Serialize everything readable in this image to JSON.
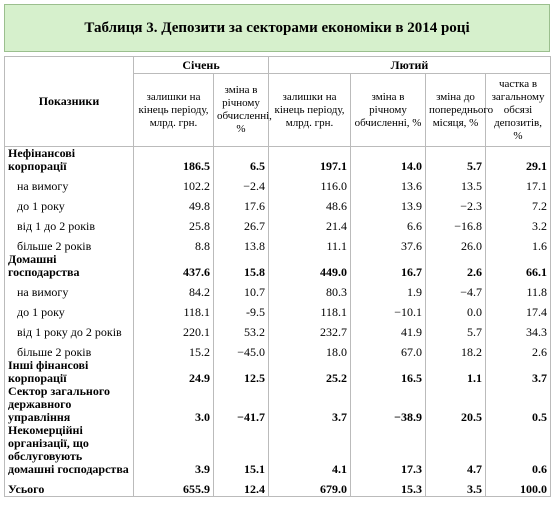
{
  "header": {
    "title": "Таблиця 3. Депозити за секторами економіки в 2014 році"
  },
  "table": {
    "row_header": "Показники",
    "groups": [
      "Січень",
      "Лютий"
    ],
    "columns": [
      "залишки на кінець періоду, млрд. грн.",
      "зміна в річному обчисленні, %",
      "залишки на кінець періоду, млрд. грн.",
      "зміна в річному обчисленні, %",
      "зміна до попереднього місяця, %",
      "частка в загальному обсязі депозитів, %"
    ],
    "rows": [
      {
        "label": "Нефінансові корпорації",
        "level": 0,
        "cells": [
          "186.5",
          "6.5",
          "197.1",
          "14.0",
          "5.7",
          "29.1"
        ]
      },
      {
        "label": "на вимогу",
        "level": 1,
        "cells": [
          "102.2",
          "−2.4",
          "116.0",
          "13.6",
          "13.5",
          "17.1"
        ]
      },
      {
        "label": "до 1 року",
        "level": 1,
        "cells": [
          "49.8",
          "17.6",
          "48.6",
          "13.9",
          "−2.3",
          "7.2"
        ]
      },
      {
        "label": "від 1 до 2 років",
        "level": 1,
        "cells": [
          "25.8",
          "26.7",
          "21.4",
          "6.6",
          "−16.8",
          "3.2"
        ]
      },
      {
        "label": "більше 2 років",
        "level": 1,
        "cells": [
          "8.8",
          "13.8",
          "11.1",
          "37.6",
          "26.0",
          "1.6"
        ]
      },
      {
        "label": "Домашні господарства",
        "level": 0,
        "cells": [
          "437.6",
          "15.8",
          "449.0",
          "16.7",
          "2.6",
          "66.1"
        ]
      },
      {
        "label": "на вимогу",
        "level": 1,
        "cells": [
          "84.2",
          "10.7",
          "80.3",
          "1.9",
          "−4.7",
          "11.8"
        ]
      },
      {
        "label": "до 1 року",
        "level": 1,
        "cells": [
          "118.1",
          "-9.5",
          "118.1",
          "−10.1",
          "0.0",
          "17.4"
        ]
      },
      {
        "label": "від 1 року до 2 років",
        "level": 1,
        "cells": [
          "220.1",
          "53.2",
          "232.7",
          "41.9",
          "5.7",
          "34.3"
        ]
      },
      {
        "label": "більше 2 років",
        "level": 1,
        "cells": [
          "15.2",
          "−45.0",
          "18.0",
          "67.0",
          "18.2",
          "2.6"
        ]
      },
      {
        "label": "Інші фінансові корпорації",
        "level": 0,
        "cells": [
          "24.9",
          "12.5",
          "25.2",
          "16.5",
          "1.1",
          "3.7"
        ]
      },
      {
        "label": "Сектор загального державного управління",
        "level": 0,
        "cells": [
          "3.0",
          "−41.7",
          "3.7",
          "−38.9",
          "20.5",
          "0.5"
        ]
      },
      {
        "label": "Некомерційні організації, що обслуговують домашні господарства",
        "level": 0,
        "cells": [
          "3.9",
          "15.1",
          "4.1",
          "17.3",
          "4.7",
          "0.6"
        ]
      },
      {
        "label": "Усього",
        "level": 0,
        "cells": [
          "655.9",
          "12.4",
          "679.0",
          "15.3",
          "3.5",
          "100.0"
        ]
      }
    ]
  }
}
